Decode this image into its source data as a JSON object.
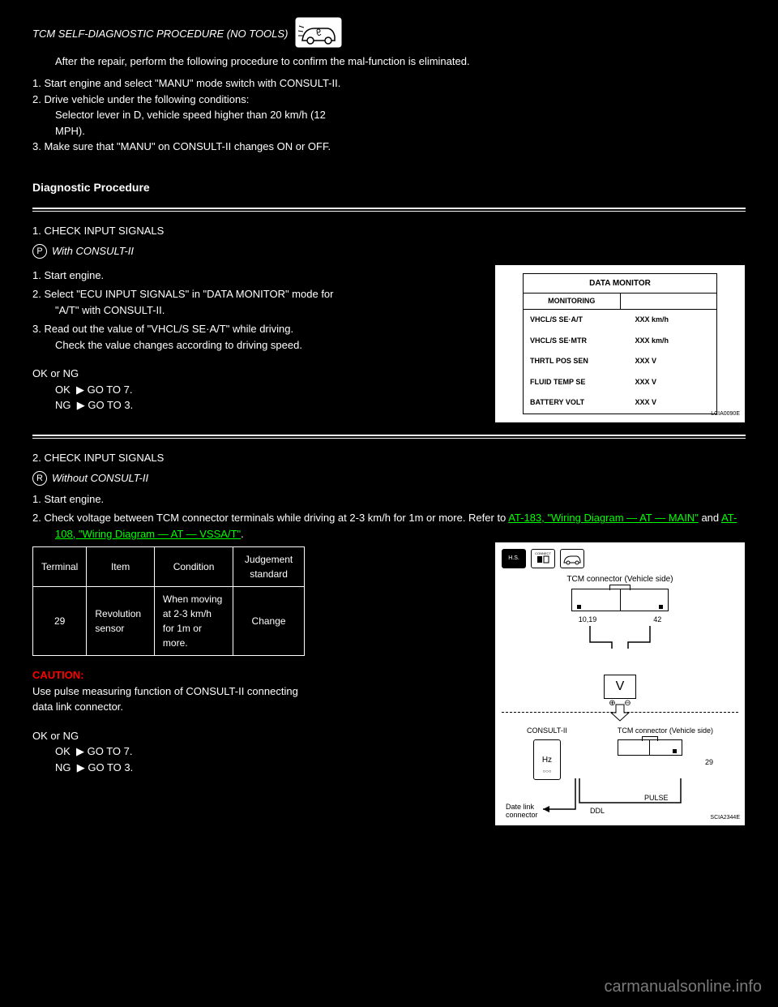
{
  "headings": {
    "tcm_confirm": "TCM SELF-DIAGNOSTIC PROCEDURE (NO TOOLS)",
    "driving_hint": "After the repair, perform the following procedure to confirm the mal-function is eliminated.",
    "drive_step1": "1.  Start engine and select \"MANU\" mode switch with CONSULT-II.",
    "drive_step2": "2.  Drive vehicle under the following conditions:\n     Selector lever in D, vehicle speed higher than 20 km/h (12\n     MPH).",
    "drive_step3": "3.  Make sure that \"MANU\" on CONSULT-II changes ON or OFF.",
    "diag_proc": "Diagnostic Procedure",
    "diag_step1_num": "1.",
    "diag_step1_title": "CHECK INPUT SIGNALS",
    "with_consult": "With CONSULT-II",
    "check1_1": "1.   Start engine.",
    "check1_2": "2.   Select \"ECU INPUT SIGNALS\" in \"DATA MONITOR\" mode for\n   \"A/T\" with CONSULT-II.",
    "check1_3": "3.   Read out the value of \"VHCL/S SE·A/T\" while driving.",
    "check1_4": "Check the value changes according to driving speed.",
    "ok_ng": "OK or NG",
    "ok_goto7": "GO TO 7.",
    "ng_goto3": "GO TO 3.",
    "diag_step2_num": "2.",
    "diag_step2_title": "CHECK INPUT SIGNALS",
    "without_consult": "Without CONSULT-II",
    "wc_1": "1.   Start engine.",
    "wc_2_pre": "2.   Check voltage between TCM connector terminals while driving at 2-3 km/h for 1m or more. Refer to",
    "wc_2_link1": "AT-183, \"Wiring Diagram — AT — MAIN\"",
    "wc_2_mid": "and",
    "wc_2_link2": "AT-108, \"Wiring Diagram — AT — VSSA/T\"",
    "wc_2_post": ".",
    "ok_goto7b": "GO TO 7.",
    "ng_goto3b": "GO TO 3.",
    "caution": "CAUTION:",
    "caution_text": "Use  pulse  measuring  function  of  CONSULT-II  connecting\ndata link connector."
  },
  "data_monitor": {
    "title": "DATA MONITOR",
    "subtitle": "MONITORING",
    "rows": [
      {
        "l": "VHCL/S SE·A/T",
        "r": "XXX km/h"
      },
      {
        "l": "VHCL/S SE·MTR",
        "r": "XXX km/h"
      },
      {
        "l": "THRTL POS SEN",
        "r": "XXX V"
      },
      {
        "l": "FLUID TEMP SE",
        "r": "XXX V"
      },
      {
        "l": "BATTERY VOLT",
        "r": "XXX V"
      }
    ],
    "figcode": "LCIA0090E"
  },
  "volt_table": {
    "header_term": "Terminal",
    "header_item": "Item",
    "header_cond": "Condition",
    "header_judge": "Judgement standard",
    "term_val": "29",
    "item_val": "Revolution sensor",
    "cond_val": "When moving at 2-3 km/h for 1m or more.",
    "judge_val": "Change"
  },
  "tcm_fig": {
    "connect_label": "CONNECT",
    "hs_label": "H.S.",
    "top_title": "TCM connector (Vehicle side)",
    "pin_left": "10,19",
    "pin_right": "42",
    "volt": "V",
    "plus": "⊕",
    "minus": "⊖",
    "consult_label": "CONSULT-II",
    "hz": "Hz",
    "ddl": "DDL",
    "pulse": "PULSE",
    "right_title": "TCM connector (Vehicle side)",
    "pin29": "29",
    "datelink": "Date link connector",
    "figcode": "SCIA2344E"
  },
  "watermark": "carmanualsonline.info"
}
